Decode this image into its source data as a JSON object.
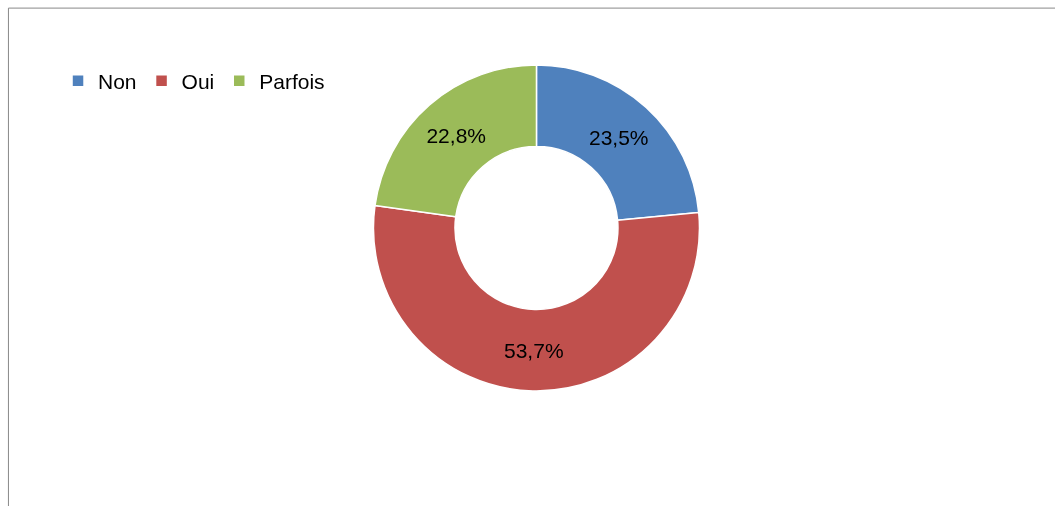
{
  "chart_data": {
    "type": "donut",
    "categories": [
      "Non",
      "Oui",
      "Parfois"
    ],
    "values": [
      23.5,
      53.7,
      22.8
    ],
    "value_labels": [
      "23,5%",
      "53,7%",
      "22,8%"
    ],
    "colors": [
      "#4f81bd",
      "#c0504d",
      "#9bbb59"
    ],
    "legend": "top left"
  }
}
